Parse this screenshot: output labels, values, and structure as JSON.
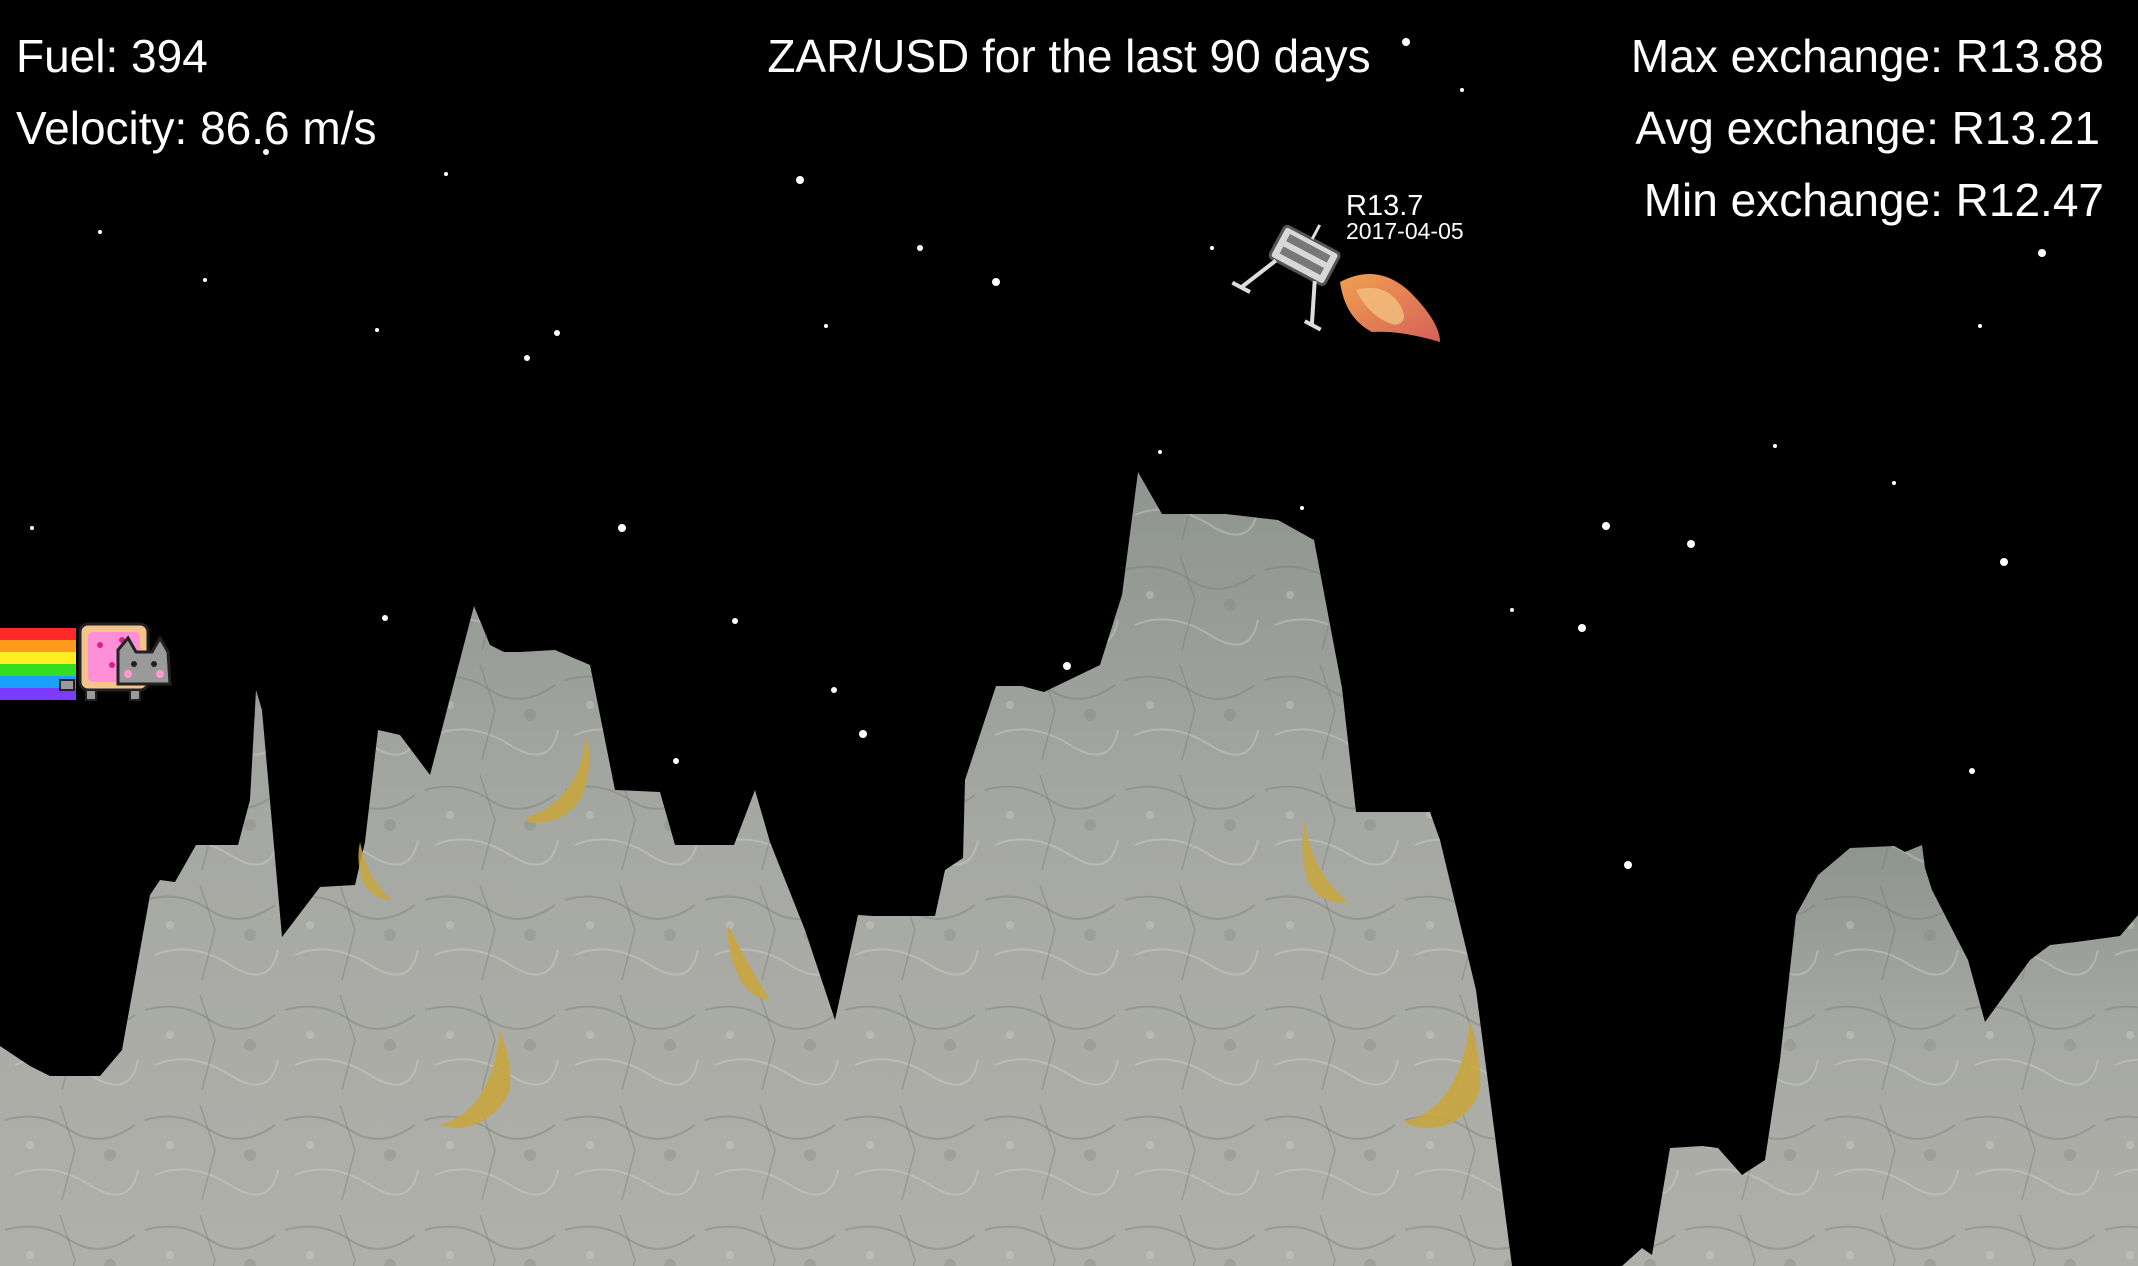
{
  "hud": {
    "fuel": "Fuel: 394",
    "velocity": "Velocity: 86.6 m/s",
    "title": "ZAR/USD for the last 90 days",
    "max_exchange": "Max exchange: R13.88",
    "avg_exchange": "Avg exchange: R13.21",
    "min_exchange": "Min exchange: R12.47"
  },
  "tooltip": {
    "rate": "R13.7",
    "date": "2017-04-05"
  },
  "colors": {
    "background": "#000000",
    "terrain": "#a9aaa5",
    "banana": "#c9a844",
    "flame": "#e2705a"
  },
  "sprites": {
    "player": "nyan-cat-icon",
    "lander": "lunar-lander-icon",
    "pickup": "banana-icon"
  }
}
